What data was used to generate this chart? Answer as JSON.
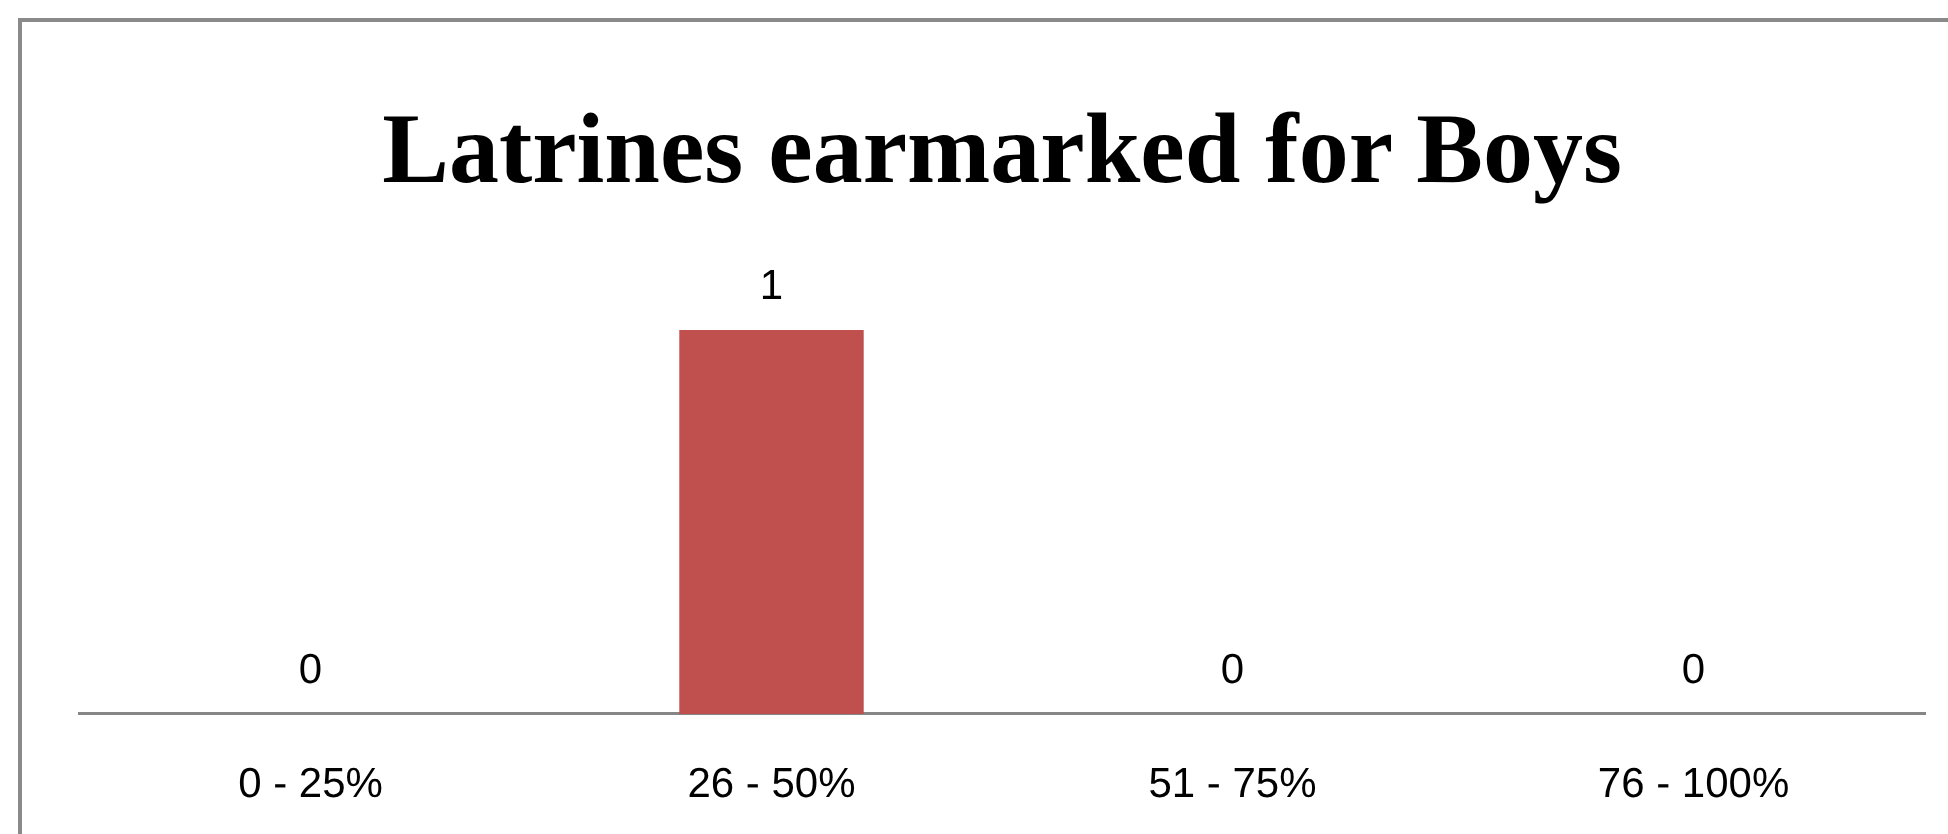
{
  "chart_data": {
    "type": "bar",
    "title": "Latrines earmarked for Boys",
    "categories": [
      "0 - 25%",
      "26 - 50%",
      "51 - 75%",
      "76 - 100%"
    ],
    "values": [
      0,
      1,
      0,
      0
    ],
    "color": "#c0504d",
    "data_labels": true
  }
}
